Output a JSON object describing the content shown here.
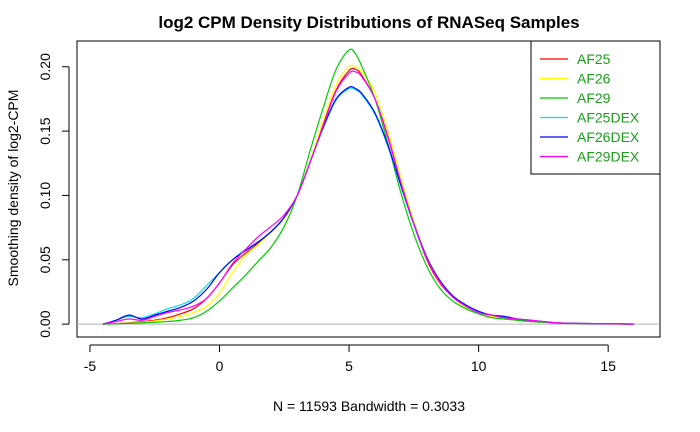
{
  "chart_data": {
    "type": "line",
    "title": "log2 CPM Density Distributions of RNASeq Samples",
    "xlabel": "N = 11593   Bandwidth = 0.3033",
    "ylabel": "Smoothing density of log2-CPM",
    "xlim": [
      -5.5,
      17
    ],
    "ylim": [
      -0.01,
      0.22
    ],
    "x_ticks": [
      "-5",
      "0",
      "5",
      "10",
      "15"
    ],
    "x_tick_values": [
      -5,
      0,
      5,
      10,
      15
    ],
    "y_ticks": [
      "0.00",
      "0.05",
      "0.10",
      "0.15",
      "0.20"
    ],
    "y_tick_values": [
      0,
      0.05,
      0.1,
      0.15,
      0.2
    ],
    "legend_position": "top-right",
    "legend_text_color": "#1a9e1a",
    "x": [
      -4.5,
      -4,
      -3.5,
      -3,
      -2.5,
      -2,
      -1.5,
      -1,
      -0.5,
      0,
      0.5,
      1,
      1.5,
      2,
      2.5,
      3,
      3.5,
      4,
      4.5,
      5,
      5.25,
      5.5,
      6,
      6.5,
      7,
      7.5,
      8,
      8.5,
      9,
      9.5,
      10,
      10.5,
      11,
      11.5,
      12,
      13,
      14,
      15,
      16
    ],
    "series": [
      {
        "name": "AF25",
        "color": "#ff0000",
        "values": [
          0.0,
          0.0005,
          0.001,
          0.002,
          0.003,
          0.005,
          0.008,
          0.012,
          0.02,
          0.032,
          0.046,
          0.055,
          0.063,
          0.072,
          0.083,
          0.1,
          0.126,
          0.155,
          0.182,
          0.197,
          0.198,
          0.193,
          0.175,
          0.145,
          0.11,
          0.078,
          0.05,
          0.032,
          0.021,
          0.013,
          0.009,
          0.006,
          0.005,
          0.003,
          0.002,
          0.001,
          0.0005,
          0.0003,
          0.0
        ]
      },
      {
        "name": "AF26",
        "color": "#ffff00",
        "values": [
          0.0,
          0.0004,
          0.0008,
          0.0015,
          0.0025,
          0.004,
          0.006,
          0.009,
          0.014,
          0.024,
          0.04,
          0.053,
          0.062,
          0.071,
          0.082,
          0.1,
          0.127,
          0.158,
          0.186,
          0.2,
          0.2,
          0.196,
          0.18,
          0.15,
          0.114,
          0.08,
          0.052,
          0.033,
          0.021,
          0.013,
          0.009,
          0.006,
          0.004,
          0.003,
          0.002,
          0.001,
          0.0005,
          0.0002,
          0.0
        ]
      },
      {
        "name": "AF29",
        "color": "#00cc00",
        "values": [
          0.0,
          0.0003,
          0.0006,
          0.001,
          0.0015,
          0.002,
          0.003,
          0.005,
          0.01,
          0.018,
          0.028,
          0.038,
          0.049,
          0.06,
          0.076,
          0.1,
          0.135,
          0.168,
          0.198,
          0.213,
          0.21,
          0.2,
          0.175,
          0.14,
          0.102,
          0.07,
          0.045,
          0.028,
          0.018,
          0.012,
          0.008,
          0.005,
          0.004,
          0.003,
          0.002,
          0.001,
          0.0004,
          0.0002,
          0.0
        ]
      },
      {
        "name": "AF25DEX",
        "color": "#00e5e5",
        "values": [
          0.0,
          0.003,
          0.006,
          0.005,
          0.008,
          0.012,
          0.015,
          0.02,
          0.03,
          0.04,
          0.05,
          0.058,
          0.064,
          0.072,
          0.083,
          0.1,
          0.126,
          0.152,
          0.174,
          0.183,
          0.182,
          0.178,
          0.163,
          0.138,
          0.107,
          0.077,
          0.051,
          0.034,
          0.022,
          0.014,
          0.009,
          0.007,
          0.006,
          0.004,
          0.003,
          0.001,
          0.0005,
          0.0003,
          0.0
        ]
      },
      {
        "name": "AF26DEX",
        "color": "#0000ff",
        "values": [
          0.0,
          0.003,
          0.007,
          0.004,
          0.007,
          0.01,
          0.013,
          0.018,
          0.027,
          0.04,
          0.05,
          0.057,
          0.064,
          0.072,
          0.083,
          0.1,
          0.126,
          0.153,
          0.175,
          0.184,
          0.183,
          0.179,
          0.164,
          0.139,
          0.108,
          0.078,
          0.052,
          0.034,
          0.022,
          0.015,
          0.01,
          0.007,
          0.006,
          0.004,
          0.003,
          0.001,
          0.0005,
          0.0003,
          0.0
        ]
      },
      {
        "name": "AF29DEX",
        "color": "#ff00ff",
        "values": [
          0.0,
          0.002,
          0.004,
          0.003,
          0.006,
          0.009,
          0.011,
          0.014,
          0.02,
          0.032,
          0.047,
          0.058,
          0.068,
          0.076,
          0.085,
          0.1,
          0.126,
          0.154,
          0.181,
          0.195,
          0.196,
          0.192,
          0.175,
          0.146,
          0.11,
          0.078,
          0.051,
          0.033,
          0.021,
          0.014,
          0.009,
          0.007,
          0.005,
          0.004,
          0.003,
          0.001,
          0.0005,
          0.0003,
          0.0
        ]
      }
    ]
  }
}
